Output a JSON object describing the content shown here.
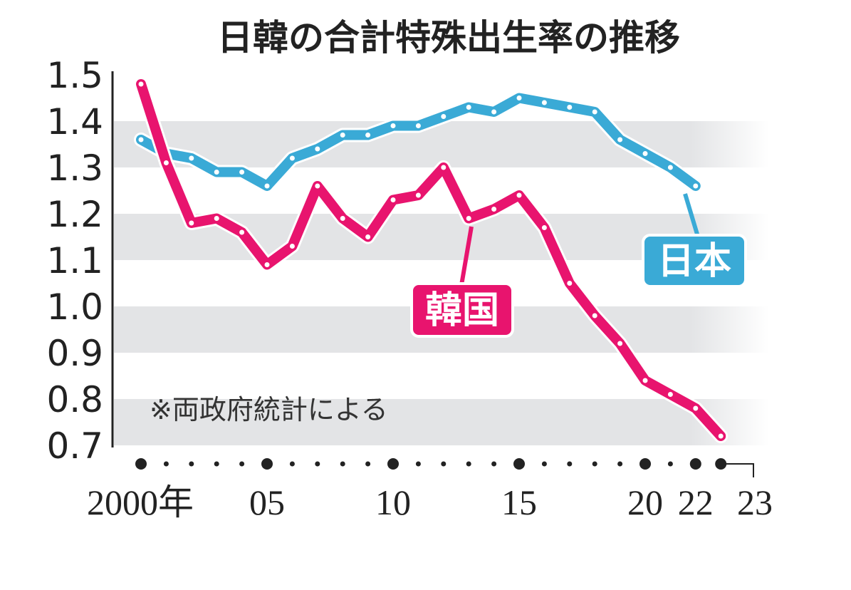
{
  "chart_data": {
    "type": "line",
    "title": "日韓の合計特殊出生率の推移",
    "note": "※両政府統計による",
    "ylim": [
      0.7,
      1.5
    ],
    "yticks": [
      "1.5",
      "1.4",
      "1.3",
      "1.2",
      "1.1",
      "1.0",
      "0.9",
      "0.8",
      "0.7"
    ],
    "xlim": [
      2000,
      2023
    ],
    "xtick_labels": [
      {
        "year": 2000,
        "label": "2000年"
      },
      {
        "year": 2005,
        "label": "05"
      },
      {
        "year": 2010,
        "label": "10"
      },
      {
        "year": 2015,
        "label": "15"
      },
      {
        "year": 2020,
        "label": "20"
      },
      {
        "year": 2022,
        "label": "22"
      },
      {
        "year": 2023,
        "label": "23"
      }
    ],
    "grid": "alternating horizontal bands",
    "series": [
      {
        "name": "日本",
        "color": "#3aaad6",
        "x": [
          2000,
          2001,
          2002,
          2003,
          2004,
          2005,
          2006,
          2007,
          2008,
          2009,
          2010,
          2011,
          2012,
          2013,
          2014,
          2015,
          2016,
          2017,
          2018,
          2019,
          2020,
          2021,
          2022
        ],
        "values": [
          1.36,
          1.33,
          1.32,
          1.29,
          1.29,
          1.26,
          1.32,
          1.34,
          1.37,
          1.37,
          1.39,
          1.39,
          1.41,
          1.43,
          1.42,
          1.45,
          1.44,
          1.43,
          1.42,
          1.36,
          1.33,
          1.3,
          1.26
        ]
      },
      {
        "name": "韓国",
        "color": "#e8146e",
        "x": [
          2000,
          2001,
          2002,
          2003,
          2004,
          2005,
          2006,
          2007,
          2008,
          2009,
          2010,
          2011,
          2012,
          2013,
          2014,
          2015,
          2016,
          2017,
          2018,
          2019,
          2020,
          2021,
          2022,
          2023
        ],
        "values": [
          1.48,
          1.31,
          1.18,
          1.19,
          1.16,
          1.09,
          1.13,
          1.26,
          1.19,
          1.15,
          1.23,
          1.24,
          1.3,
          1.19,
          1.21,
          1.24,
          1.17,
          1.05,
          0.98,
          0.92,
          0.84,
          0.81,
          0.78,
          0.72
        ]
      }
    ]
  }
}
